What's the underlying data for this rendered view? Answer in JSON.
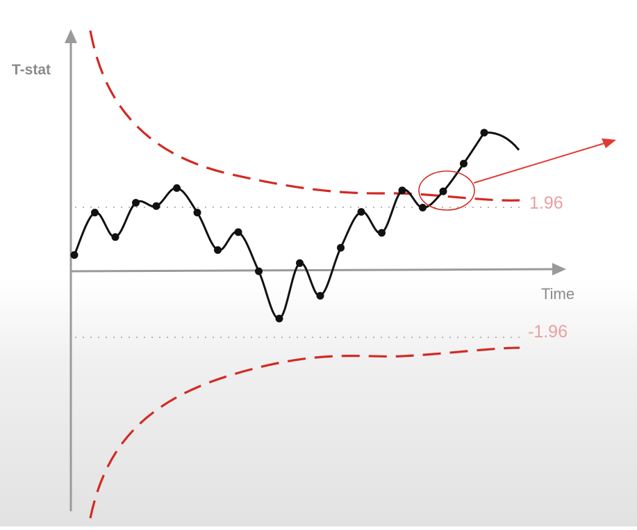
{
  "chart_data": {
    "type": "line",
    "ylabel": "T-stat",
    "xlabel": "Time",
    "thresholds": [
      {
        "label": "1.96",
        "value": 1.96
      },
      {
        "label": "-1.96",
        "value": -1.96
      }
    ],
    "series": [
      {
        "values": [
          0.5,
          1.8,
          1.05,
          2.1,
          2.0,
          2.55,
          1.8,
          0.65,
          1.2,
          0.0,
          -1.45,
          0.25,
          -0.75,
          0.72,
          1.82,
          1.18,
          2.48,
          1.95,
          2.45,
          3.3,
          4.25
        ]
      }
    ],
    "colors": {
      "line": "#111111",
      "bound": "#d22a22",
      "threshold_label": "#e8a0a0",
      "axis": "#9a9a9a",
      "arrow": "#e23a32"
    }
  }
}
